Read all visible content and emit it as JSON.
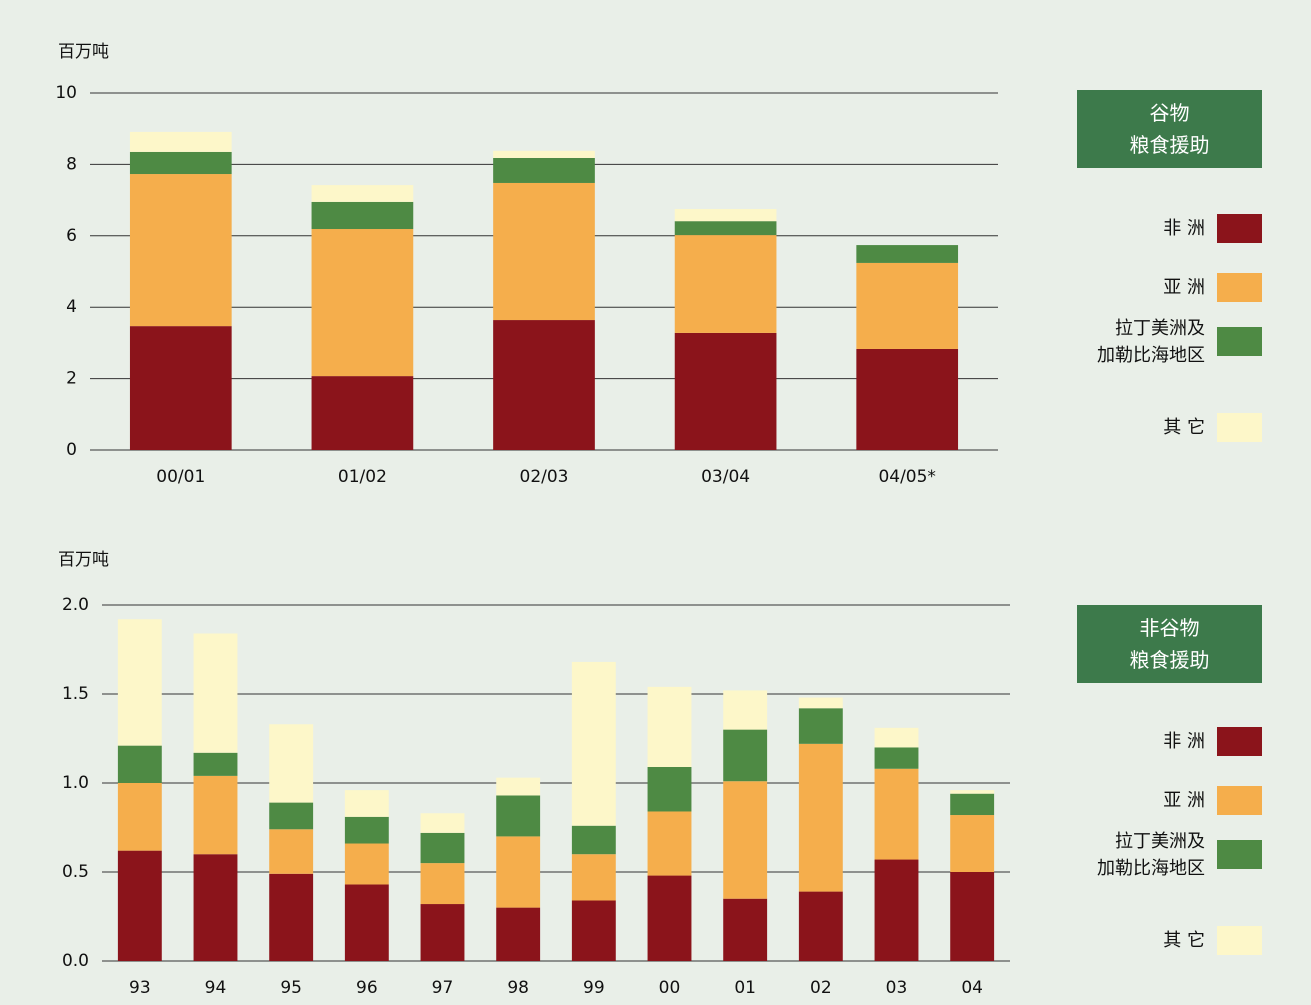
{
  "chart_data": [
    {
      "type": "stacked_bar",
      "y_label": "百万吨",
      "legend_title": "谷物\n粮食援助",
      "categories": [
        "00/01",
        "01/02",
        "02/03",
        "03/04",
        "04/05*"
      ],
      "ylim": [
        0,
        10
      ],
      "yticks": [
        0,
        2,
        4,
        6,
        8,
        10
      ],
      "grid": true,
      "series": [
        {
          "name": "非 洲",
          "color": "#8b141b",
          "values": [
            3.47,
            2.07,
            3.64,
            3.28,
            2.83
          ]
        },
        {
          "name": "亚 洲",
          "color": "#f5ae4c",
          "values": [
            4.26,
            4.12,
            3.84,
            2.74,
            2.41
          ]
        },
        {
          "name": "拉丁美洲及\n加勒比海地区",
          "color": "#4e8a44",
          "values": [
            0.62,
            0.76,
            0.7,
            0.39,
            0.5
          ]
        },
        {
          "name": "其 它",
          "color": "#fdf7c9",
          "values": [
            0.56,
            0.47,
            0.2,
            0.34,
            0
          ]
        }
      ]
    },
    {
      "type": "stacked_bar",
      "y_label": "百万吨",
      "legend_title": "非谷物\n粮食援助",
      "categories": [
        "93",
        "94",
        "95",
        "96",
        "97",
        "98",
        "99",
        "00",
        "01",
        "02",
        "03",
        "04"
      ],
      "ylim": [
        0,
        2
      ],
      "yticks": [
        {
          "value": 0,
          "label": "0.0"
        },
        {
          "value": 0.5,
          "label": "0.5"
        },
        {
          "value": 1,
          "label": "1.0"
        },
        {
          "value": 1.5,
          "label": "1.5"
        },
        {
          "value": 2,
          "label": "2.0"
        }
      ],
      "grid": true,
      "series": [
        {
          "name": "非 洲",
          "color": "#8b141b",
          "values": [
            0.62,
            0.6,
            0.49,
            0.43,
            0.32,
            0.3,
            0.34,
            0.48,
            0.35,
            0.39,
            0.57,
            0.5
          ]
        },
        {
          "name": "亚 洲",
          "color": "#f5ae4c",
          "values": [
            0.38,
            0.44,
            0.25,
            0.23,
            0.23,
            0.4,
            0.26,
            0.36,
            0.66,
            0.83,
            0.51,
            0.32
          ]
        },
        {
          "name": "拉丁美洲及\n加勒比海地区",
          "color": "#4e8a44",
          "values": [
            0.21,
            0.13,
            0.15,
            0.15,
            0.17,
            0.23,
            0.16,
            0.25,
            0.29,
            0.2,
            0.12,
            0.12
          ]
        },
        {
          "name": "其 它",
          "color": "#fdf7c9",
          "values": [
            0.71,
            0.67,
            0.44,
            0.15,
            0.11,
            0.1,
            0.92,
            0.45,
            0.22,
            0.06,
            0.11,
            0.02
          ]
        }
      ]
    }
  ]
}
